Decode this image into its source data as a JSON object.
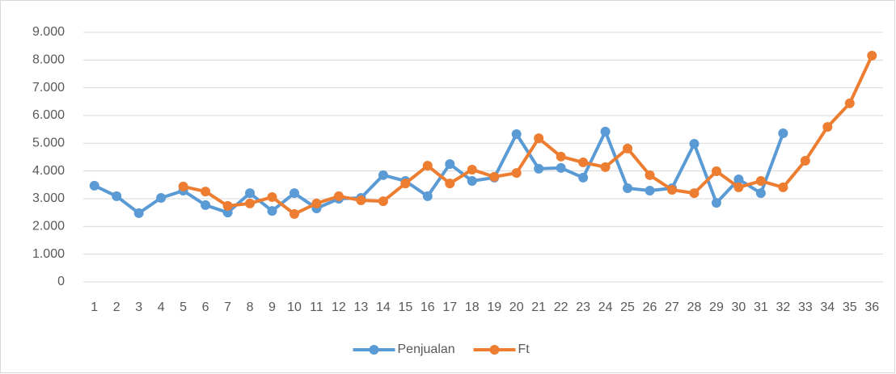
{
  "chart_data": {
    "type": "line",
    "categories": [
      "1",
      "2",
      "3",
      "4",
      "5",
      "6",
      "7",
      "8",
      "9",
      "10",
      "11",
      "12",
      "13",
      "14",
      "15",
      "16",
      "17",
      "18",
      "19",
      "20",
      "21",
      "22",
      "23",
      "24",
      "25",
      "26",
      "27",
      "28",
      "29",
      "30",
      "31",
      "32",
      "33",
      "34",
      "35",
      "36"
    ],
    "series": [
      {
        "name": "Penjualan",
        "color": "#5b9bd5",
        "values": [
          3470,
          3090,
          2480,
          3030,
          3290,
          2770,
          2500,
          3200,
          2560,
          3200,
          2650,
          3000,
          3030,
          3850,
          3640,
          3090,
          4250,
          3640,
          3760,
          5330,
          4080,
          4110,
          3760,
          5420,
          3380,
          3290,
          3380,
          4980,
          2850,
          3700,
          3200,
          5360,
          null,
          null,
          null,
          null
        ]
      },
      {
        "name": "Ft",
        "color": "#ed7d31",
        "values": [
          null,
          null,
          null,
          null,
          3440,
          3260,
          2740,
          2830,
          3060,
          2450,
          2830,
          3090,
          2940,
          2910,
          3550,
          4190,
          3550,
          4050,
          3790,
          3930,
          5180,
          4520,
          4310,
          4140,
          4810,
          3850,
          3320,
          3200,
          3990,
          3410,
          3640,
          3410,
          4370,
          5590,
          6440,
          8160
        ]
      }
    ],
    "ylim": [
      0,
      9000
    ],
    "yticks": [
      0,
      {
        "value": 1000,
        "label": "1.000"
      },
      {
        "value": 2000,
        "label": "2.000"
      },
      {
        "value": 3000,
        "label": "3.000"
      },
      {
        "value": 4000,
        "label": "4.000"
      },
      {
        "value": 5000,
        "label": "5.000"
      },
      {
        "value": 6000,
        "label": "6.000"
      },
      {
        "value": 7000,
        "label": "7.000"
      },
      {
        "value": 8000,
        "label": "8.000"
      },
      {
        "value": 9000,
        "label": "9.000"
      }
    ],
    "grid": true,
    "legend": "bottom"
  }
}
